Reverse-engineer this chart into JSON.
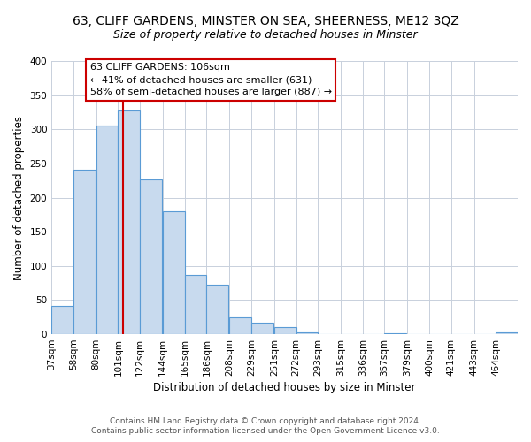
{
  "title": "63, CLIFF GARDENS, MINSTER ON SEA, SHEERNESS, ME12 3QZ",
  "subtitle": "Size of property relative to detached houses in Minster",
  "xlabel": "Distribution of detached houses by size in Minster",
  "ylabel": "Number of detached properties",
  "bar_color": "#c8daee",
  "bar_edge_color": "#5a9bd5",
  "background_color": "#ffffff",
  "grid_color": "#c8d0dc",
  "annotation_box_edge": "#cc0000",
  "annotation_text": [
    "63 CLIFF GARDENS: 106sqm",
    "← 41% of detached houses are smaller (631)",
    "58% of semi-detached houses are larger (887) →"
  ],
  "vline_x": 106,
  "vline_color": "#cc0000",
  "categories": [
    "37sqm",
    "58sqm",
    "80sqm",
    "101sqm",
    "122sqm",
    "144sqm",
    "165sqm",
    "186sqm",
    "208sqm",
    "229sqm",
    "251sqm",
    "272sqm",
    "293sqm",
    "315sqm",
    "336sqm",
    "357sqm",
    "379sqm",
    "400sqm",
    "421sqm",
    "443sqm",
    "464sqm"
  ],
  "bin_edges": [
    37,
    58,
    80,
    101,
    122,
    144,
    165,
    186,
    208,
    229,
    251,
    272,
    293,
    315,
    336,
    357,
    379,
    400,
    421,
    443,
    464
  ],
  "bin_width": 21,
  "values": [
    41,
    241,
    305,
    327,
    227,
    180,
    87,
    73,
    25,
    17,
    10,
    3,
    0,
    0,
    0,
    2,
    0,
    0,
    0,
    0,
    3
  ],
  "ylim": [
    0,
    400
  ],
  "footer": [
    "Contains HM Land Registry data © Crown copyright and database right 2024.",
    "Contains public sector information licensed under the Open Government Licence v3.0."
  ],
  "title_fontsize": 10,
  "subtitle_fontsize": 9,
  "xlabel_fontsize": 8.5,
  "ylabel_fontsize": 8.5,
  "tick_fontsize": 7.5,
  "annotation_fontsize": 8,
  "footer_fontsize": 6.5
}
